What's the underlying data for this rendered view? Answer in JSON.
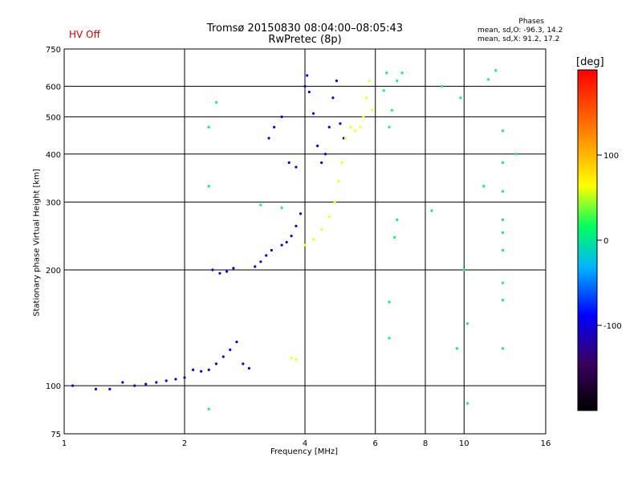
{
  "header": {
    "hv_status": "HV Off",
    "title_line1": "Tromsø 20150830 08:04:00–08:05:43",
    "title_line2": "RwPretec (8p)",
    "phases_title": "Phases",
    "phases_line1": "mean, sd,O: -96.3, 14.2",
    "phases_line2": "mean, sd,X:  91.2, 17.2"
  },
  "colorbar": {
    "unit": "[deg]",
    "ticks": [
      100,
      0,
      -100
    ],
    "min": -200,
    "max": 200,
    "colors": [
      "#000000",
      "#3a0060",
      "#0000ff",
      "#00b4ff",
      "#00ff60",
      "#ffff00",
      "#ff8000",
      "#ff0000"
    ]
  },
  "chart_data": {
    "type": "scatter",
    "title": "Tromsø 20150830 08:04:00–08:05:43",
    "subtitle": "RwPretec (8p)",
    "xlabel": "Frequency [MHz]",
    "ylabel": "Stationary phase Virtual Height [km]",
    "xscale": "log",
    "yscale": "log",
    "xlim": [
      1,
      16
    ],
    "ylim": [
      75,
      750
    ],
    "x_ticks": [
      1,
      2,
      4,
      6,
      8,
      10,
      16
    ],
    "y_ticks": [
      75,
      100,
      200,
      300,
      400,
      500,
      600,
      750
    ],
    "grid": true,
    "series": [
      {
        "name": "O",
        "color_deg": -100,
        "points": [
          [
            1.05,
            100
          ],
          [
            1.2,
            98
          ],
          [
            1.3,
            98
          ],
          [
            1.4,
            102
          ],
          [
            1.5,
            100
          ],
          [
            1.6,
            101
          ],
          [
            1.7,
            102
          ],
          [
            1.8,
            103
          ],
          [
            1.9,
            104
          ],
          [
            2.0,
            105
          ],
          [
            2.1,
            110
          ],
          [
            2.2,
            109
          ],
          [
            2.3,
            110
          ],
          [
            2.4,
            114
          ],
          [
            2.5,
            119
          ],
          [
            2.6,
            124
          ],
          [
            2.7,
            130
          ],
          [
            2.8,
            114
          ],
          [
            2.9,
            111
          ],
          [
            2.35,
            200
          ],
          [
            2.45,
            196
          ],
          [
            2.55,
            198
          ],
          [
            2.65,
            202
          ],
          [
            3.0,
            204
          ],
          [
            3.1,
            210
          ],
          [
            3.2,
            218
          ],
          [
            3.3,
            225
          ],
          [
            3.5,
            232
          ],
          [
            3.6,
            236
          ],
          [
            3.7,
            245
          ],
          [
            3.8,
            260
          ],
          [
            3.9,
            280
          ],
          [
            3.25,
            440
          ],
          [
            3.35,
            470
          ],
          [
            3.5,
            500
          ],
          [
            3.65,
            380
          ],
          [
            3.8,
            370
          ],
          [
            4.0,
            600
          ],
          [
            4.05,
            640
          ],
          [
            4.1,
            580
          ],
          [
            4.2,
            510
          ],
          [
            4.3,
            420
          ],
          [
            4.4,
            380
          ],
          [
            4.5,
            400
          ],
          [
            4.6,
            470
          ],
          [
            4.7,
            560
          ],
          [
            4.8,
            620
          ],
          [
            4.9,
            480
          ],
          [
            5.0,
            440
          ]
        ]
      },
      {
        "name": "X",
        "color_deg": 100,
        "points": [
          [
            4.0,
            232
          ],
          [
            4.2,
            240
          ],
          [
            4.4,
            255
          ],
          [
            4.6,
            275
          ],
          [
            4.75,
            300
          ],
          [
            4.85,
            340
          ],
          [
            4.95,
            380
          ],
          [
            5.05,
            440
          ],
          [
            5.2,
            470
          ],
          [
            5.35,
            460
          ],
          [
            5.5,
            470
          ],
          [
            5.6,
            500
          ],
          [
            5.7,
            560
          ],
          [
            5.8,
            620
          ],
          [
            5.9,
            520
          ],
          [
            3.7,
            118
          ],
          [
            3.8,
            117
          ]
        ]
      },
      {
        "name": "scattered",
        "color_deg": 0,
        "points": [
          [
            2.3,
            470
          ],
          [
            2.4,
            545
          ],
          [
            2.3,
            330
          ],
          [
            2.3,
            87
          ],
          [
            3.1,
            295
          ],
          [
            3.5,
            290
          ],
          [
            6.3,
            585
          ],
          [
            6.4,
            650
          ],
          [
            6.5,
            470
          ],
          [
            6.6,
            520
          ],
          [
            6.8,
            620
          ],
          [
            7.0,
            650
          ],
          [
            6.8,
            270
          ],
          [
            6.7,
            243
          ],
          [
            6.5,
            165
          ],
          [
            6.5,
            133
          ],
          [
            8.3,
            285
          ],
          [
            8.8,
            600
          ],
          [
            9.6,
            125
          ],
          [
            9.8,
            560
          ],
          [
            10.0,
            200
          ],
          [
            10.2,
            145
          ],
          [
            10.2,
            90
          ],
          [
            11.2,
            330
          ],
          [
            11.5,
            625
          ],
          [
            12.0,
            660
          ],
          [
            12.5,
            460
          ],
          [
            12.5,
            380
          ],
          [
            12.5,
            320
          ],
          [
            12.5,
            270
          ],
          [
            12.5,
            250
          ],
          [
            12.5,
            225
          ],
          [
            12.5,
            185
          ],
          [
            12.5,
            167
          ],
          [
            12.5,
            125
          ],
          [
            13.5,
            400
          ]
        ]
      }
    ]
  }
}
